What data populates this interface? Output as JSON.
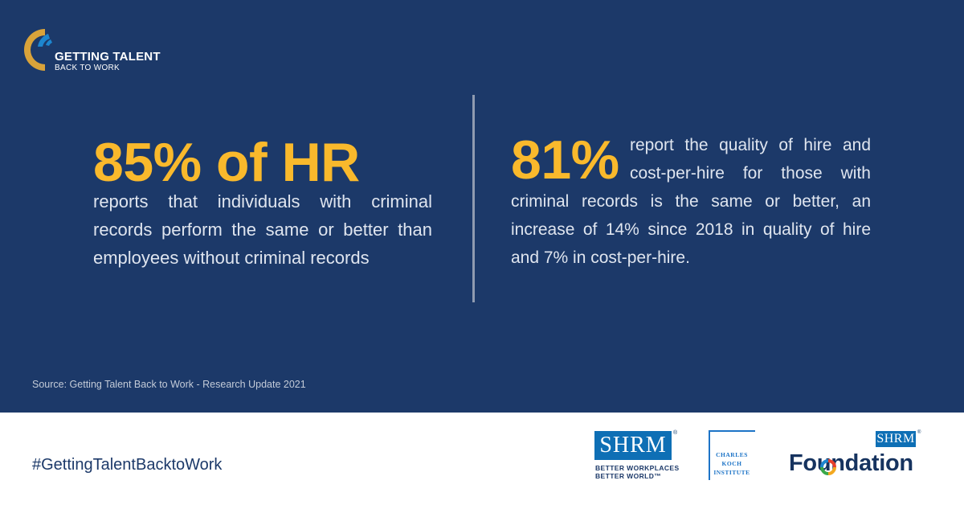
{
  "brand": {
    "line1": "GETTING TALENT",
    "line2": "BACK TO WORK",
    "mark_icon": "crescent-logo-icon",
    "colors": {
      "gold": "#d9a33a",
      "blue": "#1d86cf"
    }
  },
  "stats": {
    "left": {
      "headline": "85% of HR",
      "text": "reports that individuals with criminal records perform the same or better than employees without criminal records"
    },
    "right": {
      "headline": "81%",
      "text": "report the quality of hire and cost-per-hire for those with criminal records is the same or better, an increase of 14% since 2018 in quality of hire and 7% in cost-per-hire."
    }
  },
  "source": "Source: Getting Talent Back to Work - Research Update 2021",
  "hashtag": "#GettingTalentBacktoWork",
  "logos": {
    "shrm": {
      "wordmark": "SHRM",
      "reg": "®",
      "tagline1": "BETTER WORKPLACES",
      "tagline2": "BETTER WORLD™"
    },
    "charles_koch": {
      "line1": "CHARLES",
      "line2": "KOCH",
      "line3": "INSTITUTE"
    },
    "foundation": {
      "wordmark": "SHRM",
      "reg": "®",
      "word": "Foundation"
    }
  },
  "colors": {
    "panel": "#1c3969",
    "accent": "#f9b92c",
    "body_text": "#dfe5ef",
    "footer": "#ffffff",
    "shrm_blue": "#0e6fb5"
  }
}
